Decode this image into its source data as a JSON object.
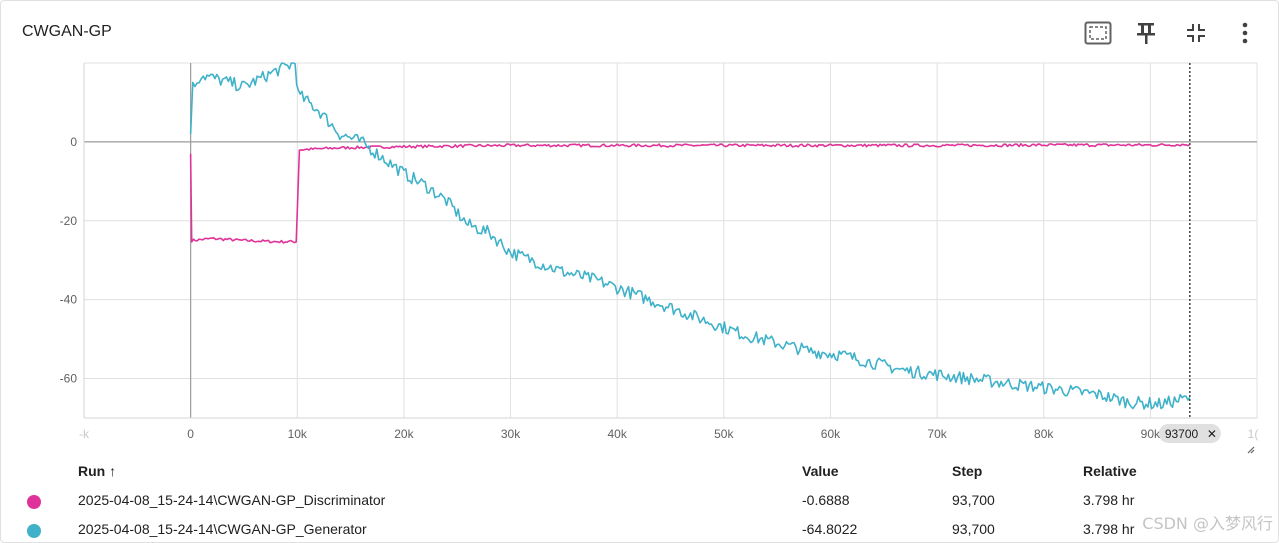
{
  "card": {
    "title": "CWGAN-GP"
  },
  "toolbar": {
    "icons": [
      "fit-domain-icon",
      "pin-icon",
      "collapse-icon",
      "more-vert-icon"
    ]
  },
  "chart_data": {
    "type": "line",
    "title": "CWGAN-GP",
    "xlabel": "",
    "ylabel": "",
    "xlim": [
      -10000,
      100000
    ],
    "ylim": [
      -70,
      20
    ],
    "x_ticks": [
      "0",
      "10k",
      "20k",
      "30k",
      "40k",
      "50k",
      "60k",
      "70k",
      "80k",
      "90k"
    ],
    "y_ticks": [
      "0",
      "-20",
      "-40",
      "-60"
    ],
    "faint_tick_left": "-k",
    "faint_tick_right": "1(",
    "grid": true,
    "hover_step": 93700,
    "hover_step_label": "93700",
    "series": [
      {
        "name": "2025-04-08_15-24-14\\CWGAN-GP_Discriminator",
        "color": "#e0339a",
        "points": [
          [
            0,
            -3
          ],
          [
            100,
            -25
          ],
          [
            2000,
            -24.5
          ],
          [
            5000,
            -25
          ],
          [
            8000,
            -25.3
          ],
          [
            9900,
            -25.3
          ],
          [
            10200,
            -2
          ],
          [
            14000,
            -1.5
          ],
          [
            20000,
            -1.2
          ],
          [
            30000,
            -0.9
          ],
          [
            40000,
            -0.9
          ],
          [
            50000,
            -0.9
          ],
          [
            60000,
            -0.9
          ],
          [
            70000,
            -0.9
          ],
          [
            80000,
            -0.8
          ],
          [
            90000,
            -0.8
          ],
          [
            93700,
            -0.6888
          ]
        ]
      },
      {
        "name": "2025-04-08_15-24-14\\CWGAN-GP_Generator",
        "color": "#3fb2c9",
        "points": [
          [
            0,
            2
          ],
          [
            200,
            14
          ],
          [
            1000,
            17
          ],
          [
            3000,
            15.5
          ],
          [
            5000,
            14
          ],
          [
            8000,
            18
          ],
          [
            9800,
            20
          ],
          [
            10100,
            12
          ],
          [
            12000,
            8
          ],
          [
            14000,
            2
          ],
          [
            16000,
            0
          ],
          [
            18000,
            -4
          ],
          [
            20000,
            -8
          ],
          [
            22000,
            -11
          ],
          [
            24000,
            -15
          ],
          [
            26000,
            -21
          ],
          [
            28000,
            -23
          ],
          [
            30000,
            -28
          ],
          [
            32000,
            -30
          ],
          [
            35000,
            -33
          ],
          [
            38000,
            -35
          ],
          [
            40000,
            -37
          ],
          [
            43000,
            -40
          ],
          [
            46000,
            -43
          ],
          [
            49000,
            -46
          ],
          [
            52000,
            -49
          ],
          [
            55000,
            -51
          ],
          [
            58000,
            -53
          ],
          [
            61000,
            -54
          ],
          [
            64000,
            -56
          ],
          [
            67000,
            -58
          ],
          [
            70000,
            -59
          ],
          [
            73000,
            -60
          ],
          [
            76000,
            -61
          ],
          [
            79000,
            -62
          ],
          [
            82000,
            -63
          ],
          [
            85000,
            -64
          ],
          [
            88000,
            -66
          ],
          [
            91000,
            -66.5
          ],
          [
            93700,
            -64.8022
          ]
        ]
      }
    ]
  },
  "table": {
    "headers": {
      "run": "Run ↑",
      "value": "Value",
      "step": "Step",
      "relative": "Relative"
    },
    "rows": [
      {
        "color": "#e0339a",
        "run": "2025-04-08_15-24-14\\CWGAN-GP_Discriminator",
        "value": "-0.6888",
        "step": "93,700",
        "relative": "3.798 hr"
      },
      {
        "color": "#3fb2c9",
        "run": "2025-04-08_15-24-14\\CWGAN-GP_Generator",
        "value": "-64.8022",
        "step": "93,700",
        "relative": "3.798 hr"
      }
    ]
  },
  "watermark": "CSDN @入梦风行"
}
